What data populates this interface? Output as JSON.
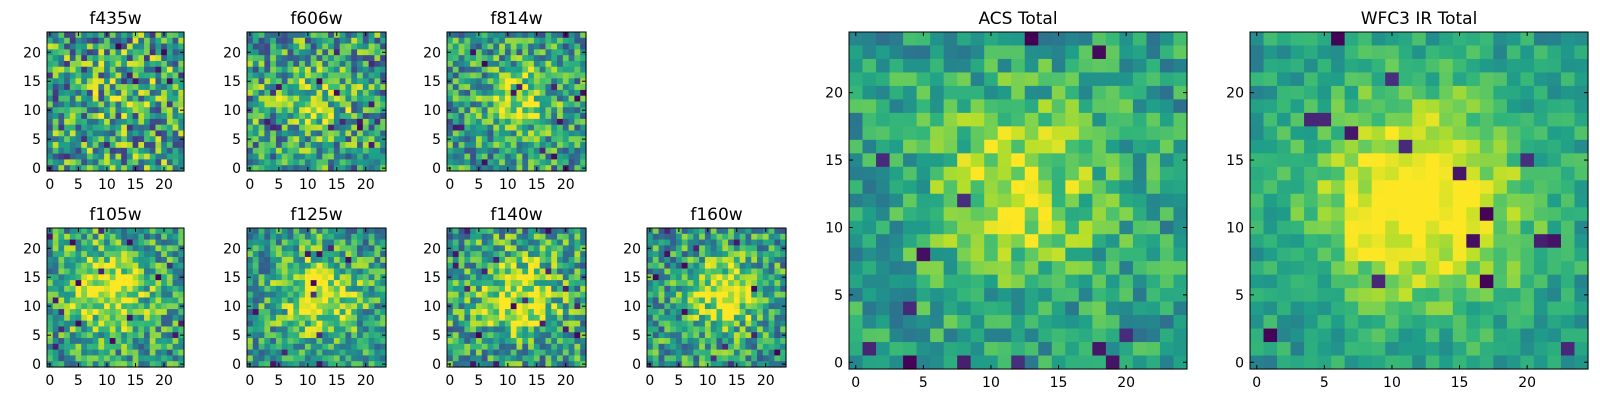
{
  "chart_data": [
    {
      "type": "heatmap",
      "title": "f435w",
      "grid_size": 24,
      "xticks": [
        "0",
        "5",
        "10",
        "15",
        "20"
      ],
      "yticks": [
        "0",
        "5",
        "10",
        "15",
        "20"
      ],
      "colormap": "viridis",
      "seed": 11,
      "peak": [
        12,
        12
      ],
      "signal": 0.05,
      "spread": 5.0,
      "noise": 0.42
    },
    {
      "type": "heatmap",
      "title": "f606w",
      "grid_size": 24,
      "xticks": [
        "0",
        "5",
        "10",
        "15",
        "20"
      ],
      "yticks": [
        "0",
        "5",
        "10",
        "15",
        "20"
      ],
      "colormap": "viridis",
      "seed": 23,
      "peak": [
        11,
        12
      ],
      "signal": 0.25,
      "spread": 4.5,
      "noise": 0.36
    },
    {
      "type": "heatmap",
      "title": "f814w",
      "grid_size": 24,
      "xticks": [
        "0",
        "5",
        "10",
        "15",
        "20"
      ],
      "yticks": [
        "0",
        "5",
        "10",
        "15",
        "20"
      ],
      "colormap": "viridis",
      "seed": 37,
      "peak": [
        12,
        12
      ],
      "signal": 0.4,
      "spread": 3.5,
      "noise": 0.32
    },
    {
      "type": "heatmap",
      "title": "f105w",
      "grid_size": 24,
      "xticks": [
        "0",
        "5",
        "10",
        "15",
        "20"
      ],
      "yticks": [
        "0",
        "5",
        "10",
        "15",
        "20"
      ],
      "colormap": "viridis",
      "seed": 41,
      "peak": [
        10,
        13
      ],
      "signal": 0.45,
      "spread": 5.0,
      "noise": 0.3
    },
    {
      "type": "heatmap",
      "title": "f125w",
      "grid_size": 24,
      "xticks": [
        "0",
        "5",
        "10",
        "15",
        "20"
      ],
      "yticks": [
        "0",
        "5",
        "10",
        "15",
        "20"
      ],
      "colormap": "viridis",
      "seed": 53,
      "peak": [
        12,
        12
      ],
      "signal": 0.45,
      "spread": 4.5,
      "noise": 0.3
    },
    {
      "type": "heatmap",
      "title": "f140w",
      "grid_size": 24,
      "xticks": [
        "0",
        "5",
        "10",
        "15",
        "20"
      ],
      "yticks": [
        "0",
        "5",
        "10",
        "15",
        "20"
      ],
      "colormap": "viridis",
      "seed": 67,
      "peak": [
        12,
        12
      ],
      "signal": 0.4,
      "spread": 5.0,
      "noise": 0.32
    },
    {
      "type": "heatmap",
      "title": "f160w",
      "grid_size": 24,
      "xticks": [
        "0",
        "5",
        "10",
        "15",
        "20"
      ],
      "yticks": [
        "0",
        "5",
        "10",
        "15",
        "20"
      ],
      "colormap": "viridis",
      "seed": 79,
      "peak": [
        13,
        12
      ],
      "signal": 0.45,
      "spread": 4.0,
      "noise": 0.3
    },
    {
      "type": "heatmap",
      "title": "ACS Total",
      "grid_size": 25,
      "xticks": [
        "0",
        "5",
        "10",
        "15",
        "20"
      ],
      "yticks": [
        "0",
        "5",
        "10",
        "15",
        "20"
      ],
      "colormap": "viridis",
      "seed": 97,
      "peak": [
        12,
        13
      ],
      "signal": 0.35,
      "spread": 5.0,
      "noise": 0.2
    },
    {
      "type": "heatmap",
      "title": "WFC3 IR Total",
      "grid_size": 25,
      "xticks": [
        "0",
        "5",
        "10",
        "15",
        "20"
      ],
      "yticks": [
        "0",
        "5",
        "10",
        "15",
        "20"
      ],
      "colormap": "viridis",
      "seed": 101,
      "peak": [
        12,
        12
      ],
      "signal": 0.55,
      "spread": 5.5,
      "noise": 0.14
    }
  ]
}
